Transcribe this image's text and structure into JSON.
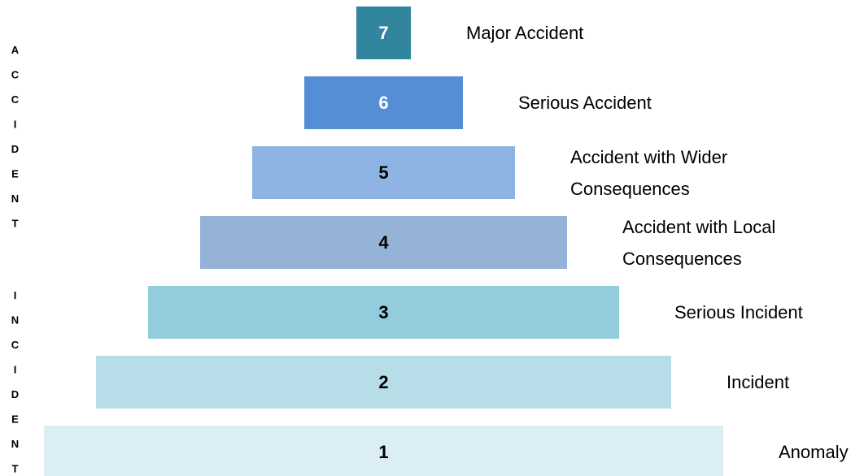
{
  "side_labels": [
    "ACCIDENT",
    "INCIDENT"
  ],
  "levels": [
    {
      "number": 7,
      "label": "Major Accident",
      "color": "#31859c",
      "text_color": "#ffffff"
    },
    {
      "number": 6,
      "label": "Serious Accident",
      "color": "#558ed5",
      "text_color": "#ffffff"
    },
    {
      "number": 5,
      "label": "Accident with Wider Consequences",
      "color": "#8eb4e3",
      "text_color": "#000000"
    },
    {
      "number": 4,
      "label": "Accident with Local Consequences",
      "color": "#95b3d7",
      "text_color": "#000000"
    },
    {
      "number": 3,
      "label": "Serious Incident",
      "color": "#93cddd",
      "text_color": "#000000"
    },
    {
      "number": 2,
      "label": "Incident",
      "color": "#b7dee8",
      "text_color": "#000000"
    },
    {
      "number": 1,
      "label": "Anomaly",
      "color": "#dbeef4",
      "text_color": "#000000"
    }
  ]
}
